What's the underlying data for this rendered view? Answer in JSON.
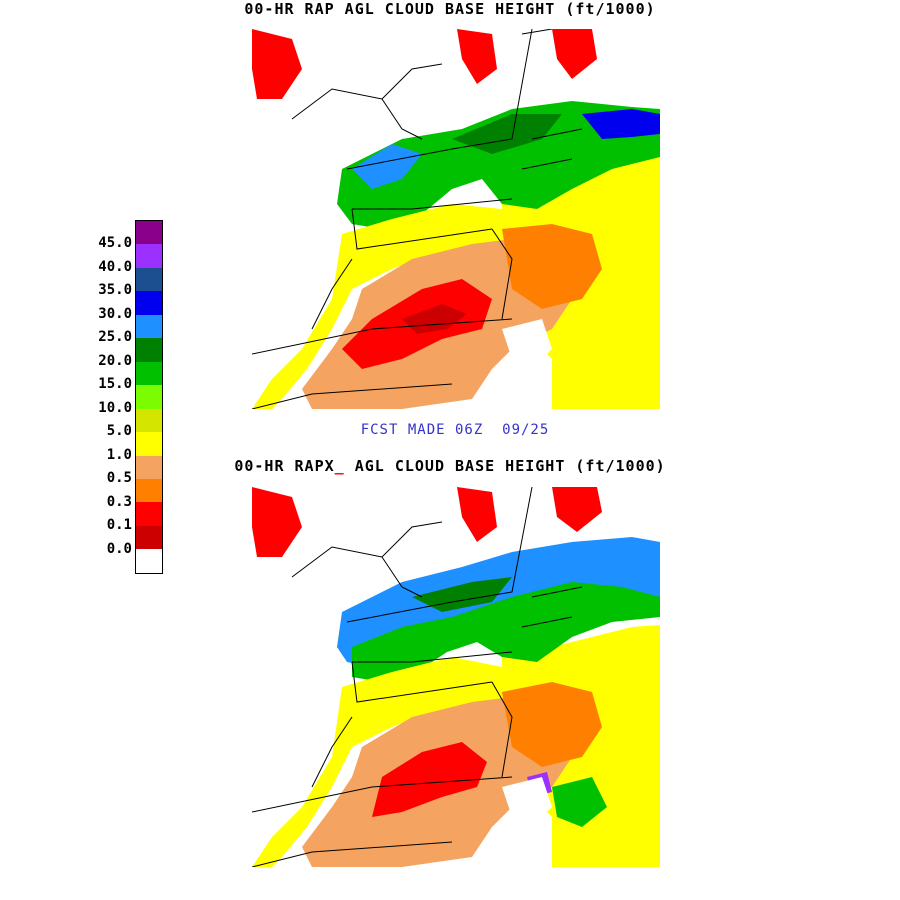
{
  "top_panel": {
    "title_prefix": "00-HR RAP ",
    "title_accent": "",
    "title_suffix": "AGL CLOUD BASE HEIGHT (ft/1000)"
  },
  "bottom_panel": {
    "title_prefix": "00-HR RAPX",
    "title_accent": "_",
    "title_suffix": " AGL CLOUD BASE HEIGHT (ft/1000)"
  },
  "forecast_label": "FCST MADE 06Z  09/25",
  "legend": {
    "labels": [
      "45.0",
      "40.0",
      "35.0",
      "30.0",
      "25.0",
      "20.0",
      "15.0",
      "10.0",
      "5.0",
      "1.0",
      "0.5",
      "0.3",
      "0.1",
      "0.0"
    ],
    "colors": [
      "#8b008b",
      "#9b30ff",
      "#1c4f8f",
      "#0000ee",
      "#1e90ff",
      "#008000",
      "#00c000",
      "#7cfc00",
      "#d4e600",
      "#ffff00",
      "#f4a460",
      "#ff8000",
      "#ff0000",
      "#cc0000",
      "#ffffff"
    ]
  },
  "colors": {
    "forecast_text": "#3333cc",
    "title_accent": "#ff0000"
  }
}
